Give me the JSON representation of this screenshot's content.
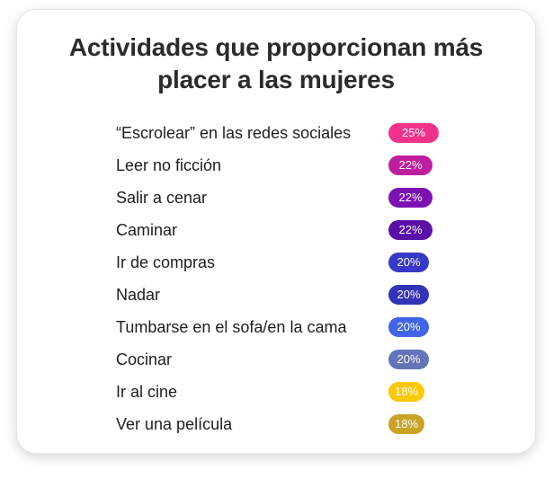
{
  "chart_data": {
    "type": "table",
    "title_lines": [
      "Actividades que proporcionan más",
      "placer a las mujeres"
    ],
    "items": [
      {
        "label": "“Escrolear” en las redes sociales",
        "value": 25,
        "display": "25%",
        "color": "#f0328c"
      },
      {
        "label": "Leer no ficción",
        "value": 22,
        "display": "22%",
        "color": "#bf1f9e"
      },
      {
        "label": "Salir a cenar",
        "value": 22,
        "display": "22%",
        "color": "#7d12b3"
      },
      {
        "label": "Caminar",
        "value": 22,
        "display": "22%",
        "color": "#5a0fa8"
      },
      {
        "label": "Ir de compras",
        "value": 20,
        "display": "20%",
        "color": "#3838c9"
      },
      {
        "label": "Nadar",
        "value": 20,
        "display": "20%",
        "color": "#3333b8"
      },
      {
        "label": "Tumbarse en el sofa/en la cama",
        "value": 20,
        "display": "20%",
        "color": "#4264e6"
      },
      {
        "label": "Cocinar",
        "value": 20,
        "display": "20%",
        "color": "#6474b8"
      },
      {
        "label": "Ir al cine",
        "value": 18,
        "display": "18%",
        "color": "#fcc80a"
      },
      {
        "label": "Ver una película",
        "value": 18,
        "display": "18%",
        "color": "#c9a227"
      }
    ]
  }
}
